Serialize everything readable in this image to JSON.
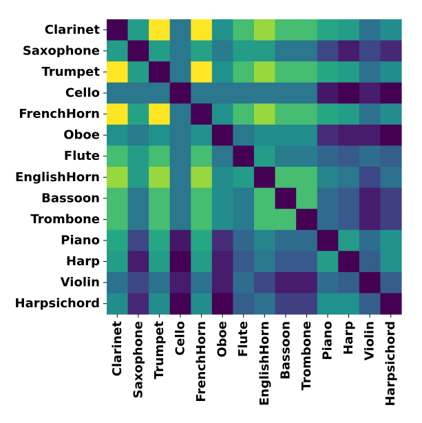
{
  "chart_data": {
    "type": "heatmap",
    "title": "",
    "xlabel": "",
    "ylabel": "",
    "categories": [
      "Clarinet",
      "Saxophone",
      "Trumpet",
      "Cello",
      "FrenchHorn",
      "Oboe",
      "Flute",
      "EnglishHorn",
      "Bassoon",
      "Trombone",
      "Piano",
      "Harp",
      "Violin",
      "Harpsichord"
    ],
    "colormap": "viridis",
    "value_range": [
      0,
      1
    ],
    "colorbar": false,
    "grid": false,
    "matrix": [
      [
        0.0,
        0.55,
        1.0,
        0.4,
        1.0,
        0.5,
        0.7,
        0.85,
        0.7,
        0.7,
        0.6,
        0.55,
        0.38,
        0.48
      ],
      [
        0.55,
        0.0,
        0.55,
        0.4,
        0.58,
        0.42,
        0.55,
        0.55,
        0.4,
        0.4,
        0.22,
        0.1,
        0.22,
        0.14
      ],
      [
        1.0,
        0.55,
        0.0,
        0.4,
        1.0,
        0.5,
        0.7,
        0.85,
        0.7,
        0.7,
        0.6,
        0.55,
        0.38,
        0.48
      ],
      [
        0.4,
        0.4,
        0.4,
        0.0,
        0.4,
        0.4,
        0.4,
        0.4,
        0.4,
        0.4,
        0.08,
        0.0,
        0.1,
        0.0
      ],
      [
        1.0,
        0.58,
        1.0,
        0.4,
        0.0,
        0.5,
        0.7,
        0.85,
        0.7,
        0.7,
        0.6,
        0.55,
        0.38,
        0.48
      ],
      [
        0.5,
        0.42,
        0.5,
        0.4,
        0.5,
        0.0,
        0.4,
        0.48,
        0.48,
        0.48,
        0.15,
        0.1,
        0.1,
        0.0
      ],
      [
        0.7,
        0.55,
        0.7,
        0.4,
        0.7,
        0.4,
        0.0,
        0.55,
        0.42,
        0.42,
        0.33,
        0.28,
        0.36,
        0.3
      ],
      [
        0.85,
        0.55,
        0.85,
        0.4,
        0.85,
        0.48,
        0.55,
        0.0,
        0.7,
        0.7,
        0.45,
        0.4,
        0.22,
        0.38
      ],
      [
        0.7,
        0.4,
        0.7,
        0.4,
        0.7,
        0.48,
        0.42,
        0.7,
        0.0,
        0.7,
        0.35,
        0.28,
        0.1,
        0.2
      ],
      [
        0.7,
        0.4,
        0.7,
        0.4,
        0.7,
        0.48,
        0.42,
        0.7,
        0.7,
        0.0,
        0.35,
        0.28,
        0.1,
        0.2
      ],
      [
        0.6,
        0.22,
        0.6,
        0.08,
        0.6,
        0.15,
        0.33,
        0.45,
        0.35,
        0.35,
        0.0,
        0.55,
        0.36,
        0.5
      ],
      [
        0.55,
        0.1,
        0.55,
        0.0,
        0.55,
        0.1,
        0.28,
        0.4,
        0.28,
        0.28,
        0.55,
        0.0,
        0.3,
        0.5
      ],
      [
        0.38,
        0.22,
        0.38,
        0.1,
        0.38,
        0.1,
        0.36,
        0.22,
        0.1,
        0.1,
        0.36,
        0.3,
        0.0,
        0.3
      ],
      [
        0.48,
        0.14,
        0.48,
        0.0,
        0.48,
        0.0,
        0.3,
        0.38,
        0.2,
        0.2,
        0.5,
        0.5,
        0.3,
        0.0
      ]
    ]
  }
}
